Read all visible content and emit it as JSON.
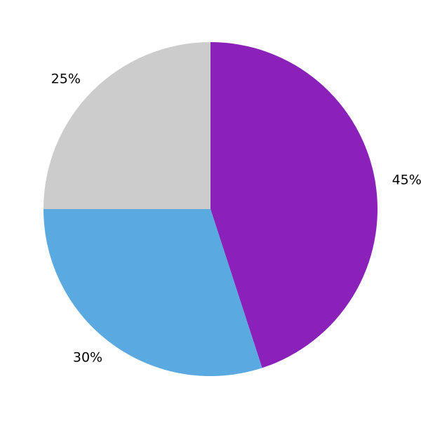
{
  "chart_data": {
    "type": "pie",
    "title": "",
    "labels": [
      "45%",
      "30%",
      "25%"
    ],
    "values": [
      45,
      30,
      25
    ],
    "colors": [
      "#8A22BA",
      "#5AA9E1",
      "#CCCCCC"
    ],
    "start_angle_deg": 90,
    "direction": "clockwise",
    "label_distance_ratio": 1.1,
    "label_color": "#000000",
    "background": "#ffffff",
    "legend": "none"
  }
}
